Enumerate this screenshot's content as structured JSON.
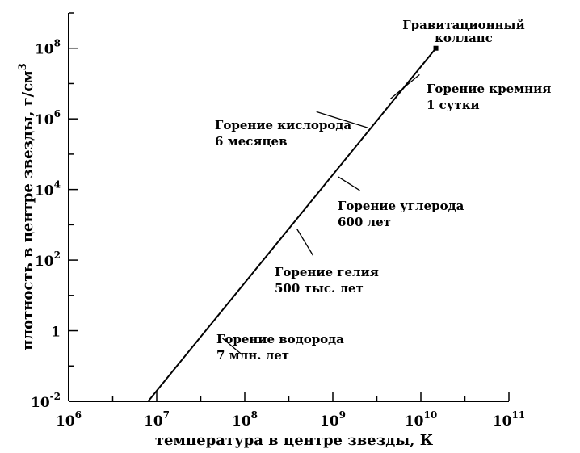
{
  "chart_data": {
    "type": "line",
    "xlabel": "температура в центре звезды, К",
    "ylabel": "плотность в центре звезды, г/см",
    "ylabel_sup": "3",
    "x_scale": "log",
    "y_scale": "log",
    "xlim": [
      1000000,
      100000000000
    ],
    "ylim": [
      0.01,
      1000000000
    ],
    "grid": false,
    "x_ticks": [
      {
        "value": 1000000,
        "base": "10",
        "exp": "6"
      },
      {
        "value": 10000000,
        "base": "10",
        "exp": "7"
      },
      {
        "value": 100000000,
        "base": "10",
        "exp": "8"
      },
      {
        "value": 1000000000,
        "base": "10",
        "exp": "9"
      },
      {
        "value": 10000000000,
        "base": "10",
        "exp": "10"
      },
      {
        "value": 100000000000,
        "base": "10",
        "exp": "11"
      }
    ],
    "y_ticks": [
      {
        "value": 0.01,
        "base": "10",
        "exp": "-2"
      },
      {
        "value": 1,
        "base": "1",
        "exp": ""
      },
      {
        "value": 100,
        "base": "10",
        "exp": "2"
      },
      {
        "value": 10000,
        "base": "10",
        "exp": "4"
      },
      {
        "value": 1000000,
        "base": "10",
        "exp": "6"
      },
      {
        "value": 100000000,
        "base": "10",
        "exp": "8"
      }
    ],
    "series": [
      {
        "x": [
          8000000,
          14800000000
        ],
        "y": [
          0.01,
          100000000
        ]
      }
    ],
    "end_point": {
      "x": 14800000000,
      "y": 100000000
    },
    "annotations": [
      {
        "id": "hydrogen",
        "lines": [
          "Горение водорода",
          "7 млн. лет"
        ],
        "x": 62000000,
        "y": 0.55
      },
      {
        "id": "helium",
        "lines": [
          "Горение гелия",
          "500 тыс. лет"
        ],
        "x": 330000000,
        "y": 1000
      },
      {
        "id": "carbon",
        "lines": [
          "Горение углерода",
          "600 лет"
        ],
        "x": 1030000000,
        "y": 30000
      },
      {
        "id": "oxygen",
        "lines": [
          "Горение кислорода",
          "6 месяцев"
        ],
        "x": 2800000000,
        "y": 500000
      },
      {
        "id": "silicon",
        "lines": [
          "Горение кремния",
          "1 сутки"
        ],
        "x": 4150000000,
        "y": 3000000
      },
      {
        "id": "collapse",
        "lines": [
          "Гравитационный",
          "коллапс"
        ],
        "x": 14800000000,
        "y": 100000000
      }
    ]
  }
}
